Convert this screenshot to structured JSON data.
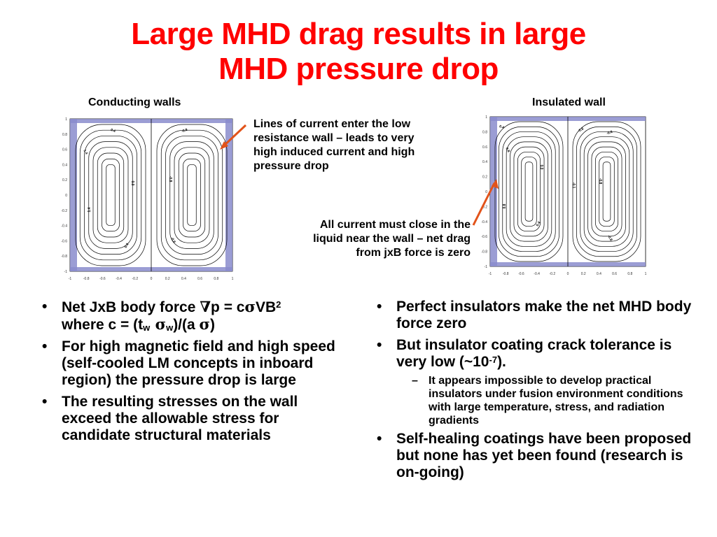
{
  "slide": {
    "title_line1": "Large MHD drag results in large",
    "title_line2": "MHD pressure drop"
  },
  "figures": {
    "left_label": "Conducting walls",
    "right_label": "Insulated wall",
    "left_plot": {
      "x_ticks": [
        "-1",
        "-0.8",
        "-0.6",
        "-0.4",
        "-0.2",
        "0",
        "0.2",
        "0.4",
        "0.6",
        "0.8",
        "1"
      ],
      "y_ticks": [
        "1",
        "0.8",
        "0.6",
        "0.4",
        "0.2",
        "0",
        "-0.2",
        "-0.4",
        "-0.6",
        "-0.8",
        "-1"
      ],
      "contour_labels": [
        "0.4",
        "1.4",
        "1.4",
        "0.4",
        "0.0",
        "-0.8",
        "-0.8",
        "-0.8"
      ]
    },
    "right_plot": {
      "x_ticks": [
        "-1",
        "-0.8",
        "-0.6",
        "-0.4",
        "-0.2",
        "0",
        "0.2",
        "0.4",
        "0.6",
        "0.8",
        "1"
      ],
      "y_ticks": [
        "1",
        "0.8",
        "0.6",
        "0.4",
        "0.2",
        "0",
        "-0.2",
        "-0.4",
        "-0.6",
        "-0.8",
        "-1"
      ],
      "contour_labels": [
        "0.4",
        "0.8",
        "0.8",
        "0.4",
        "0.0",
        "-0.1",
        "-0.8",
        "-0.8",
        "-0.8",
        "-0.8"
      ]
    },
    "wall_color": "#8a8ccc",
    "arrow_color": "#e2531a"
  },
  "annotations": {
    "upper_lines": [
      "Lines of current enter the low",
      "resistance wall – leads to very",
      "high induced current and high",
      "pressure drop"
    ],
    "lower_lines": [
      "All current must close in the",
      "liquid near the wall – net drag",
      "from jxB force is zero"
    ]
  },
  "left_bullets": {
    "b1_a": "Net JxB body force ",
    "b1_nabla": "∇",
    "b1_b": "p = c",
    "b1_sigma": "σ",
    "b1_c": "VB",
    "b1_sup": "2",
    "b1_line2_a": "where c = (t",
    "b1_sub_w1": "w",
    "b1_sigma2": " σ",
    "b1_sub_w2": "w",
    "b1_line2_b": ")/(a ",
    "b1_sigma3": "σ",
    "b1_line2_c": ")",
    "b2": "For high magnetic field and high speed (self-cooled LM concepts in inboard region) the pressure drop is large",
    "b3": "The resulting stresses on the wall exceed the allowable stress for candidate structural materials"
  },
  "right_bullets": {
    "b1": "Perfect insulators make the net MHD body force zero",
    "b2_a": "But insulator coating crack tolerance is very low (~10",
    "b2_sup": "-7",
    "b2_b": ").",
    "sub1": "It appears impossible to develop practical insulators under fusion environment conditions with large temperature, stress, and radiation gradients",
    "b3": "Self-healing coatings have been proposed but none has yet been found (research is on-going)"
  }
}
